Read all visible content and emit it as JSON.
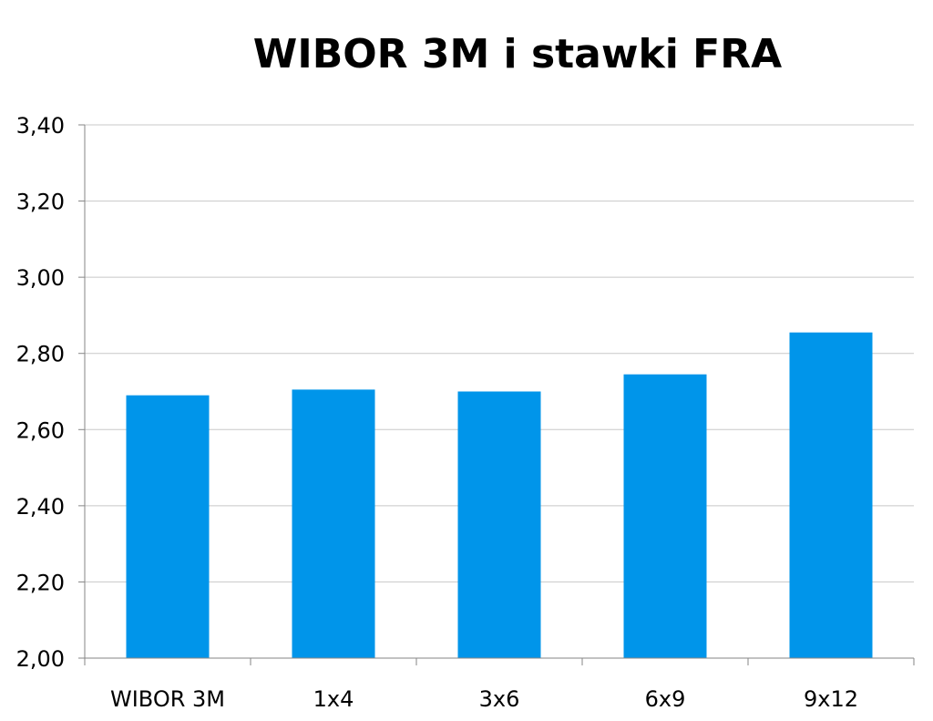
{
  "chart_data": {
    "type": "bar",
    "title": "WIBOR 3M i stawki FRA",
    "xlabel": "",
    "ylabel": "",
    "categories": [
      "WIBOR 3M",
      "1x4",
      "3x6",
      "6x9",
      "9x12"
    ],
    "values": [
      2.69,
      2.705,
      2.7,
      2.745,
      2.855
    ],
    "ylim": [
      2.0,
      3.4
    ],
    "yticks": [
      "2,00",
      "2,20",
      "2,40",
      "2,60",
      "2,80",
      "3,00",
      "3,20",
      "3,40"
    ],
    "ytick_values": [
      2.0,
      2.2,
      2.4,
      2.6,
      2.8,
      3.0,
      3.2,
      3.4
    ],
    "grid": true,
    "legend": "none",
    "colors": {
      "bar": "#0095EA",
      "grid": "#C8C8C8",
      "axis": "#868686"
    }
  }
}
